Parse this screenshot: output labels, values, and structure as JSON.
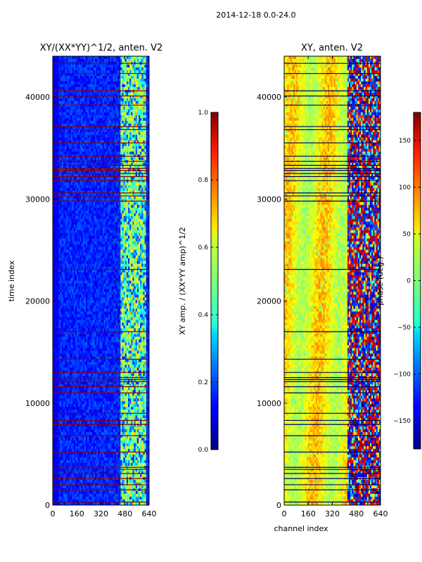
{
  "figure_title": "2014-12-18 0.0-24.0",
  "chart_data": [
    {
      "type": "heatmap",
      "title": "XY/(XX*YY)^1/2, anten. V2",
      "xlabel": "",
      "ylabel": "time index",
      "xlim": [
        0,
        640
      ],
      "ylim": [
        0,
        44000
      ],
      "xticks": [
        0,
        160,
        320,
        480,
        640
      ],
      "xtick_labels": [
        "0",
        "160",
        "320",
        "480",
        "640"
      ],
      "yticks": [
        0,
        10000,
        20000,
        30000,
        40000
      ],
      "ytick_labels": [
        "0",
        "10000",
        "20000",
        "30000",
        "40000"
      ],
      "colorbar": {
        "label": "XY amp. / (XX*YY amp)^1/2",
        "min": 0.0,
        "max": 1.0,
        "ticks": [
          0.0,
          0.2,
          0.4,
          0.6,
          0.8,
          1.0
        ],
        "tick_labels": [
          "0.0",
          "0.2",
          "0.4",
          "0.6",
          "0.8",
          "1.0"
        ]
      },
      "flag_rows": [
        300,
        1500,
        2000,
        2600,
        3100,
        3500,
        3700,
        5200,
        6800,
        7900,
        8300,
        9000,
        11000,
        11600,
        12100,
        12300,
        12500,
        13000,
        14300,
        17000,
        23100,
        29800,
        30300,
        30600,
        31800,
        32200,
        32500,
        32800,
        33000,
        33300,
        33700,
        34200,
        35500,
        36800,
        37100,
        39200,
        40100,
        40600,
        42300,
        43300
      ]
    },
    {
      "type": "heatmap",
      "title": "XY, anten. V2",
      "xlabel": "channel index",
      "ylabel": "",
      "xlim": [
        0,
        640
      ],
      "ylim": [
        0,
        44000
      ],
      "xticks": [
        0,
        160,
        320,
        480,
        640
      ],
      "xtick_labels": [
        "0",
        "160",
        "320",
        "480",
        "640"
      ],
      "yticks": [
        0,
        10000,
        20000,
        30000,
        40000
      ],
      "ytick_labels": [
        "0",
        "10000",
        "20000",
        "30000",
        "40000"
      ],
      "colorbar": {
        "label": "phase (deg.)",
        "min": -180,
        "max": 180,
        "ticks": [
          -150,
          -100,
          -50,
          0,
          50,
          100,
          150
        ],
        "tick_labels": [
          "−150",
          "−100",
          "−50",
          "0",
          "50",
          "100",
          "150"
        ]
      },
      "flag_rows": [
        300,
        1500,
        2000,
        2600,
        3100,
        3500,
        3700,
        5200,
        6800,
        7900,
        8300,
        9000,
        11000,
        11600,
        12100,
        12300,
        12500,
        13000,
        14300,
        17000,
        23100,
        29800,
        30300,
        30600,
        31800,
        32200,
        32500,
        32800,
        33000,
        33300,
        33700,
        34200,
        35500,
        36800,
        37100,
        39200,
        40100,
        40600,
        42300,
        43300
      ]
    }
  ]
}
